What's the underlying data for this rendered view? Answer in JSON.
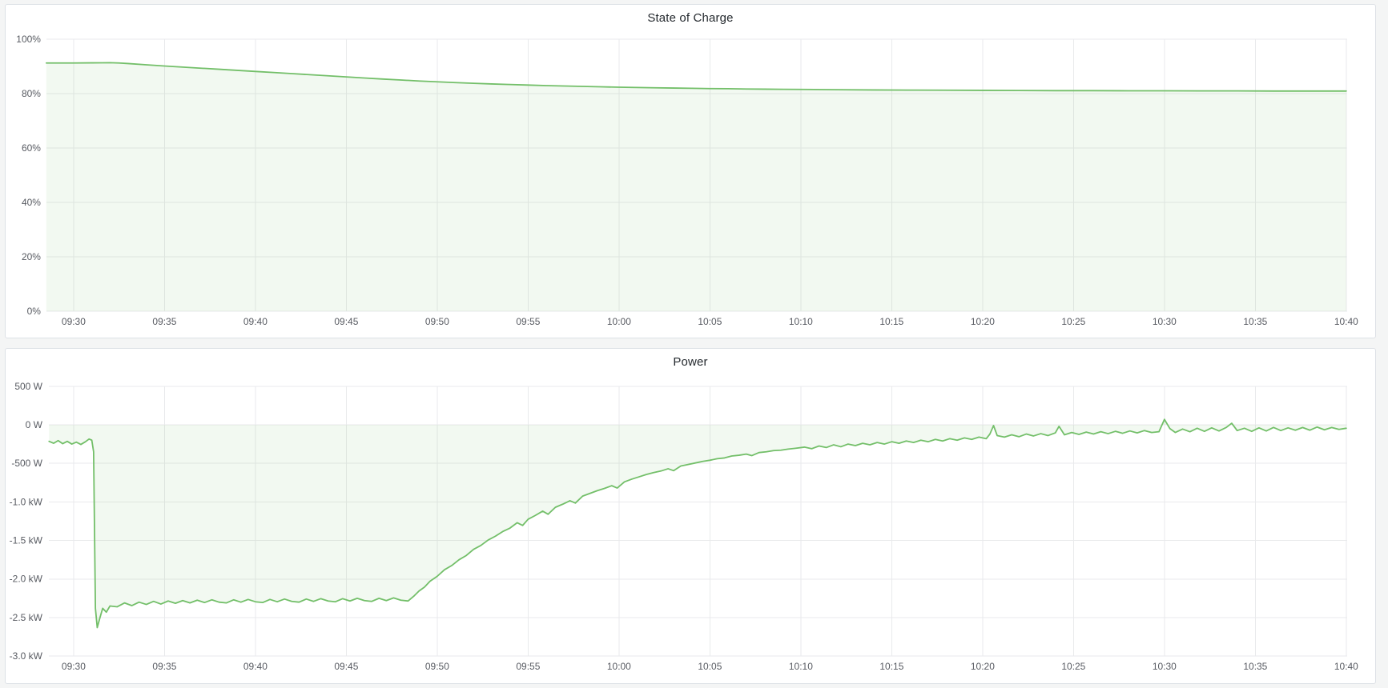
{
  "page": {
    "background": "#f4f5f5",
    "panel_background": "#ffffff"
  },
  "colors": {
    "series_green": "#73bf69",
    "series_fill": "rgba(115,191,105,0.09)",
    "gridline": "#e9eaec",
    "axis_text": "#575a61",
    "title_text": "#24292e"
  },
  "panels": [
    {
      "title": "State of Charge"
    },
    {
      "title": "Power"
    }
  ],
  "chart_data": [
    {
      "type": "area",
      "title": "State of Charge",
      "ylabel": "",
      "xlabel": "",
      "unit": "percent",
      "grid": true,
      "legend": "none",
      "line_color": "#73bf69",
      "fill_color": "rgba(115,191,105,0.09)",
      "baseline": 0,
      "ylim": [
        0,
        100
      ],
      "y_ticks": [
        {
          "v": 100,
          "label": "100%"
        },
        {
          "v": 80,
          "label": "80%"
        },
        {
          "v": 60,
          "label": "60%"
        },
        {
          "v": 40,
          "label": "40%"
        },
        {
          "v": 20,
          "label": "20%"
        },
        {
          "v": 0,
          "label": "0%"
        }
      ],
      "x_ticks": [
        {
          "t": 0,
          "label": "09:30"
        },
        {
          "t": 5,
          "label": "09:35"
        },
        {
          "t": 10,
          "label": "09:40"
        },
        {
          "t": 15,
          "label": "09:45"
        },
        {
          "t": 20,
          "label": "09:50"
        },
        {
          "t": 25,
          "label": "09:55"
        },
        {
          "t": 30,
          "label": "10:00"
        },
        {
          "t": 35,
          "label": "10:05"
        },
        {
          "t": 40,
          "label": "10:10"
        },
        {
          "t": 45,
          "label": "10:15"
        },
        {
          "t": 50,
          "label": "10:20"
        },
        {
          "t": 55,
          "label": "10:25"
        },
        {
          "t": 60,
          "label": "10:30"
        },
        {
          "t": 65,
          "label": "10:35"
        },
        {
          "t": 70,
          "label": "10:40"
        }
      ],
      "points": [
        [
          -1.5,
          91.2
        ],
        [
          0,
          91.2
        ],
        [
          1,
          91.25
        ],
        [
          2,
          91.3
        ],
        [
          2.5,
          91.2
        ],
        [
          3,
          91.0
        ],
        [
          4,
          90.55
        ],
        [
          5,
          90.1
        ],
        [
          6,
          89.7
        ],
        [
          7,
          89.3
        ],
        [
          8,
          88.9
        ],
        [
          9,
          88.5
        ],
        [
          10,
          88.1
        ],
        [
          11,
          87.7
        ],
        [
          12,
          87.3
        ],
        [
          13,
          86.9
        ],
        [
          14,
          86.5
        ],
        [
          15,
          86.1
        ],
        [
          16,
          85.7
        ],
        [
          17,
          85.3
        ],
        [
          18,
          84.95
        ],
        [
          19,
          84.6
        ],
        [
          20,
          84.3
        ],
        [
          21,
          84.0
        ],
        [
          22,
          83.75
        ],
        [
          23,
          83.5
        ],
        [
          24,
          83.3
        ],
        [
          25,
          83.1
        ],
        [
          26,
          82.9
        ],
        [
          27,
          82.75
        ],
        [
          28,
          82.6
        ],
        [
          29,
          82.45
        ],
        [
          30,
          82.3
        ],
        [
          31,
          82.2
        ],
        [
          32,
          82.1
        ],
        [
          33,
          82.0
        ],
        [
          34,
          81.9
        ],
        [
          35,
          81.8
        ],
        [
          36,
          81.75
        ],
        [
          37,
          81.65
        ],
        [
          38,
          81.6
        ],
        [
          39,
          81.55
        ],
        [
          40,
          81.5
        ],
        [
          42,
          81.4
        ],
        [
          44,
          81.3
        ],
        [
          46,
          81.25
        ],
        [
          48,
          81.2
        ],
        [
          50,
          81.15
        ],
        [
          52,
          81.1
        ],
        [
          54,
          81.05
        ],
        [
          56,
          81.05
        ],
        [
          58,
          81.0
        ],
        [
          60,
          81.0
        ],
        [
          62,
          80.95
        ],
        [
          64,
          80.95
        ],
        [
          66,
          80.9
        ],
        [
          68,
          80.9
        ],
        [
          70,
          80.9
        ]
      ]
    },
    {
      "type": "area",
      "title": "Power",
      "ylabel": "",
      "xlabel": "",
      "unit": "watt",
      "grid": true,
      "legend": "none",
      "line_color": "#73bf69",
      "fill_color": "rgba(115,191,105,0.09)",
      "baseline": 0,
      "ylim": [
        -3000,
        500
      ],
      "y_ticks": [
        {
          "v": 500,
          "label": "500 W"
        },
        {
          "v": 0,
          "label": "0 W"
        },
        {
          "v": -500,
          "label": "-500 W"
        },
        {
          "v": -1000,
          "label": "-1.0 kW"
        },
        {
          "v": -1500,
          "label": "-1.5 kW"
        },
        {
          "v": -2000,
          "label": "-2.0 kW"
        },
        {
          "v": -2500,
          "label": "-2.5 kW"
        },
        {
          "v": -3000,
          "label": "-3.0 kW"
        }
      ],
      "x_ticks": [
        {
          "t": 0,
          "label": "09:30"
        },
        {
          "t": 5,
          "label": "09:35"
        },
        {
          "t": 10,
          "label": "09:40"
        },
        {
          "t": 15,
          "label": "09:45"
        },
        {
          "t": 20,
          "label": "09:50"
        },
        {
          "t": 25,
          "label": "09:55"
        },
        {
          "t": 30,
          "label": "10:00"
        },
        {
          "t": 35,
          "label": "10:05"
        },
        {
          "t": 40,
          "label": "10:10"
        },
        {
          "t": 45,
          "label": "10:15"
        },
        {
          "t": 50,
          "label": "10:20"
        },
        {
          "t": 55,
          "label": "10:25"
        },
        {
          "t": 60,
          "label": "10:30"
        },
        {
          "t": 65,
          "label": "10:35"
        },
        {
          "t": 70,
          "label": "10:40"
        }
      ],
      "points": [
        [
          -1.35,
          -215
        ],
        [
          -1.1,
          -240
        ],
        [
          -0.85,
          -205
        ],
        [
          -0.6,
          -245
        ],
        [
          -0.35,
          -215
        ],
        [
          -0.1,
          -250
        ],
        [
          0.15,
          -225
        ],
        [
          0.4,
          -255
        ],
        [
          0.65,
          -220
        ],
        [
          0.85,
          -185
        ],
        [
          1.0,
          -200
        ],
        [
          1.1,
          -350
        ],
        [
          1.2,
          -2380
        ],
        [
          1.3,
          -2630
        ],
        [
          1.45,
          -2500
        ],
        [
          1.6,
          -2380
        ],
        [
          1.8,
          -2430
        ],
        [
          2.0,
          -2350
        ],
        [
          2.4,
          -2360
        ],
        [
          2.8,
          -2310
        ],
        [
          3.2,
          -2345
        ],
        [
          3.6,
          -2300
        ],
        [
          4.0,
          -2330
        ],
        [
          4.4,
          -2290
        ],
        [
          4.8,
          -2325
        ],
        [
          5.2,
          -2285
        ],
        [
          5.6,
          -2315
        ],
        [
          6.0,
          -2280
        ],
        [
          6.4,
          -2310
        ],
        [
          6.8,
          -2275
        ],
        [
          7.2,
          -2305
        ],
        [
          7.6,
          -2270
        ],
        [
          8.0,
          -2300
        ],
        [
          8.4,
          -2310
        ],
        [
          8.8,
          -2270
        ],
        [
          9.2,
          -2300
        ],
        [
          9.6,
          -2265
        ],
        [
          10.0,
          -2295
        ],
        [
          10.4,
          -2305
        ],
        [
          10.8,
          -2265
        ],
        [
          11.2,
          -2295
        ],
        [
          11.6,
          -2260
        ],
        [
          12.0,
          -2290
        ],
        [
          12.4,
          -2300
        ],
        [
          12.8,
          -2260
        ],
        [
          13.2,
          -2290
        ],
        [
          13.6,
          -2255
        ],
        [
          14.0,
          -2285
        ],
        [
          14.4,
          -2295
        ],
        [
          14.8,
          -2255
        ],
        [
          15.2,
          -2285
        ],
        [
          15.6,
          -2250
        ],
        [
          16.0,
          -2280
        ],
        [
          16.4,
          -2290
        ],
        [
          16.8,
          -2250
        ],
        [
          17.2,
          -2280
        ],
        [
          17.6,
          -2245
        ],
        [
          18.0,
          -2275
        ],
        [
          18.4,
          -2285
        ],
        [
          18.7,
          -2225
        ],
        [
          19.0,
          -2155
        ],
        [
          19.3,
          -2105
        ],
        [
          19.6,
          -2030
        ],
        [
          20.0,
          -1965
        ],
        [
          20.4,
          -1880
        ],
        [
          20.8,
          -1825
        ],
        [
          21.2,
          -1750
        ],
        [
          21.6,
          -1695
        ],
        [
          22.0,
          -1615
        ],
        [
          22.4,
          -1565
        ],
        [
          22.8,
          -1495
        ],
        [
          23.2,
          -1445
        ],
        [
          23.6,
          -1385
        ],
        [
          24.0,
          -1340
        ],
        [
          24.4,
          -1270
        ],
        [
          24.7,
          -1305
        ],
        [
          25.0,
          -1225
        ],
        [
          25.4,
          -1175
        ],
        [
          25.8,
          -1120
        ],
        [
          26.1,
          -1160
        ],
        [
          26.5,
          -1070
        ],
        [
          26.9,
          -1030
        ],
        [
          27.3,
          -985
        ],
        [
          27.6,
          -1015
        ],
        [
          28.0,
          -925
        ],
        [
          28.4,
          -890
        ],
        [
          28.8,
          -855
        ],
        [
          29.2,
          -825
        ],
        [
          29.6,
          -790
        ],
        [
          29.9,
          -820
        ],
        [
          30.3,
          -740
        ],
        [
          30.7,
          -705
        ],
        [
          31.1,
          -675
        ],
        [
          31.5,
          -645
        ],
        [
          31.9,
          -620
        ],
        [
          32.3,
          -600
        ],
        [
          32.7,
          -570
        ],
        [
          33.0,
          -595
        ],
        [
          33.4,
          -535
        ],
        [
          33.8,
          -515
        ],
        [
          34.2,
          -495
        ],
        [
          34.6,
          -475
        ],
        [
          35.0,
          -460
        ],
        [
          35.4,
          -440
        ],
        [
          35.8,
          -430
        ],
        [
          36.2,
          -405
        ],
        [
          36.6,
          -395
        ],
        [
          37.0,
          -380
        ],
        [
          37.3,
          -400
        ],
        [
          37.7,
          -360
        ],
        [
          38.1,
          -350
        ],
        [
          38.5,
          -335
        ],
        [
          38.9,
          -330
        ],
        [
          39.3,
          -315
        ],
        [
          39.7,
          -305
        ],
        [
          40.2,
          -290
        ],
        [
          40.6,
          -310
        ],
        [
          41.0,
          -275
        ],
        [
          41.4,
          -295
        ],
        [
          41.8,
          -260
        ],
        [
          42.2,
          -285
        ],
        [
          42.6,
          -250
        ],
        [
          43.0,
          -270
        ],
        [
          43.4,
          -240
        ],
        [
          43.8,
          -260
        ],
        [
          44.2,
          -230
        ],
        [
          44.6,
          -250
        ],
        [
          45.0,
          -220
        ],
        [
          45.4,
          -240
        ],
        [
          45.8,
          -210
        ],
        [
          46.2,
          -230
        ],
        [
          46.6,
          -200
        ],
        [
          47.0,
          -220
        ],
        [
          47.4,
          -190
        ],
        [
          47.8,
          -210
        ],
        [
          48.2,
          -180
        ],
        [
          48.6,
          -200
        ],
        [
          49.0,
          -170
        ],
        [
          49.4,
          -190
        ],
        [
          49.8,
          -160
        ],
        [
          50.2,
          -180
        ],
        [
          50.4,
          -120
        ],
        [
          50.6,
          -10
        ],
        [
          50.8,
          -140
        ],
        [
          51.2,
          -160
        ],
        [
          51.6,
          -130
        ],
        [
          52.0,
          -155
        ],
        [
          52.4,
          -120
        ],
        [
          52.8,
          -145
        ],
        [
          53.2,
          -115
        ],
        [
          53.6,
          -140
        ],
        [
          54.0,
          -105
        ],
        [
          54.2,
          -20
        ],
        [
          54.5,
          -130
        ],
        [
          54.9,
          -100
        ],
        [
          55.3,
          -125
        ],
        [
          55.7,
          -95
        ],
        [
          56.1,
          -120
        ],
        [
          56.5,
          -90
        ],
        [
          56.9,
          -115
        ],
        [
          57.3,
          -85
        ],
        [
          57.7,
          -110
        ],
        [
          58.1,
          -80
        ],
        [
          58.5,
          -105
        ],
        [
          58.9,
          -75
        ],
        [
          59.3,
          -100
        ],
        [
          59.7,
          -90
        ],
        [
          60.0,
          70
        ],
        [
          60.3,
          -50
        ],
        [
          60.6,
          -100
        ],
        [
          61.0,
          -55
        ],
        [
          61.4,
          -90
        ],
        [
          61.8,
          -45
        ],
        [
          62.2,
          -85
        ],
        [
          62.6,
          -40
        ],
        [
          63.0,
          -80
        ],
        [
          63.4,
          -35
        ],
        [
          63.7,
          20
        ],
        [
          64.0,
          -75
        ],
        [
          64.4,
          -45
        ],
        [
          64.8,
          -85
        ],
        [
          65.2,
          -40
        ],
        [
          65.6,
          -80
        ],
        [
          66.0,
          -35
        ],
        [
          66.4,
          -75
        ],
        [
          66.8,
          -40
        ],
        [
          67.2,
          -70
        ],
        [
          67.6,
          -35
        ],
        [
          68.0,
          -70
        ],
        [
          68.4,
          -30
        ],
        [
          68.8,
          -65
        ],
        [
          69.2,
          -35
        ],
        [
          69.6,
          -60
        ],
        [
          70.0,
          -45
        ]
      ]
    }
  ]
}
